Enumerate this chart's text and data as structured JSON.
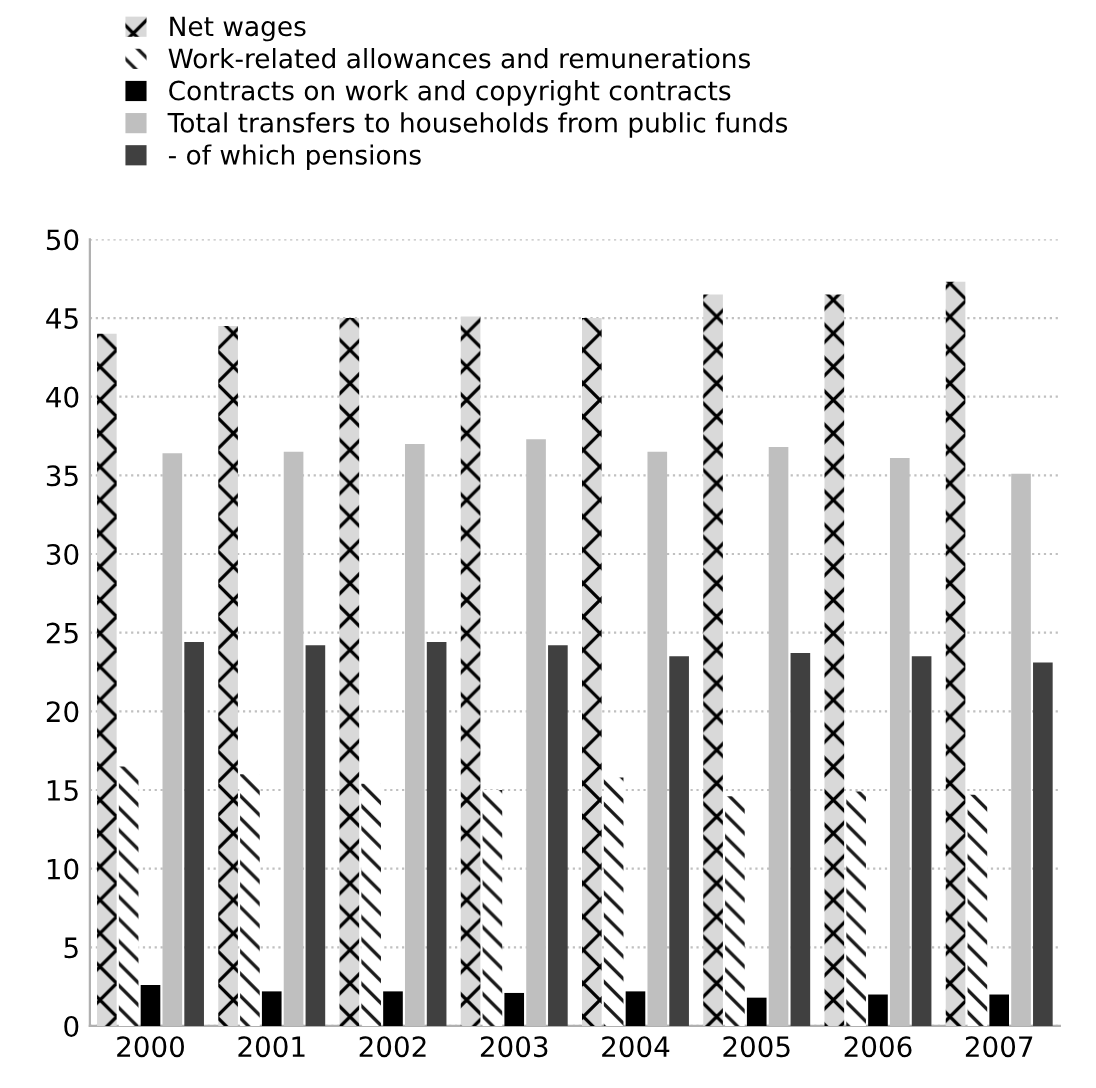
{
  "chart_data": {
    "type": "bar",
    "categories": [
      "2000",
      "2001",
      "2002",
      "2003",
      "2004",
      "2005",
      "2006",
      "2007"
    ],
    "series": [
      {
        "name": "Net wages",
        "color": "#000000",
        "values": [
          44.0,
          44.5,
          45.0,
          45.1,
          45.0,
          46.5,
          46.5,
          47.3
        ]
      },
      {
        "name": "Work-related allowances and remunerations",
        "color": "#1a1a1a",
        "values": [
          16.5,
          16.0,
          15.4,
          15.0,
          15.8,
          14.6,
          14.9,
          14.7
        ]
      },
      {
        "name": "Contracts on work and copyright contracts",
        "color": "#000000",
        "values": [
          2.6,
          2.2,
          2.2,
          2.1,
          2.2,
          1.8,
          2.0,
          2.0
        ]
      },
      {
        "name": "Total transfers to households from public funds",
        "color": "#bfbfbf",
        "values": [
          36.4,
          36.5,
          37.0,
          37.3,
          36.5,
          36.8,
          36.1,
          35.1
        ]
      },
      {
        "name": "- of which pensions",
        "color": "#404040",
        "values": [
          24.4,
          24.2,
          24.4,
          24.2,
          23.5,
          23.7,
          23.5,
          23.1
        ]
      }
    ],
    "ylim": [
      0,
      50
    ],
    "yticks": [
      0,
      5,
      10,
      15,
      20,
      25,
      30,
      35,
      40,
      45,
      50
    ],
    "grid": "y",
    "legend": "top"
  }
}
